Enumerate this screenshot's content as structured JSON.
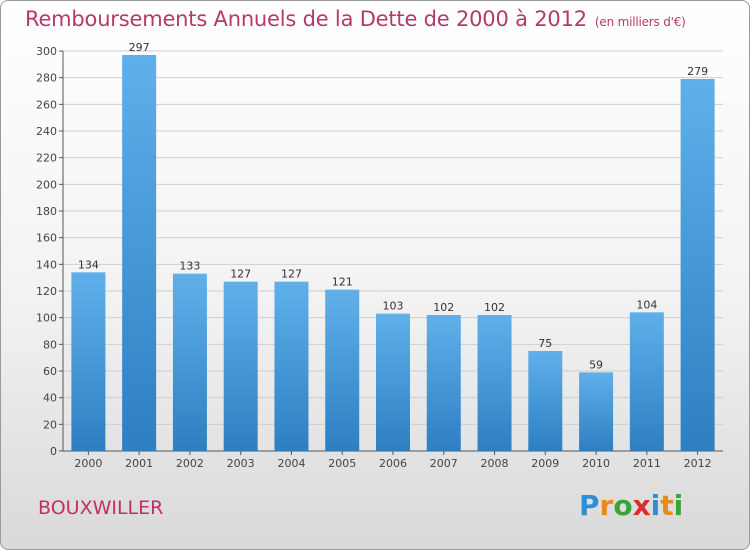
{
  "header": {
    "title": "Remboursements Annuels de la Dette de 2000 à 2012",
    "unit": "(en milliers d'€)"
  },
  "footer": {
    "commune": "BOUXWILLER",
    "logo_letters": [
      "P",
      "r",
      "o",
      "x",
      "i",
      "t",
      "i"
    ]
  },
  "colors": {
    "bar_top": "#5fb0ea",
    "bar_bottom": "#2d7fc2",
    "title": "#b53a6a",
    "grid": "#cfcfcf"
  },
  "chart_data": {
    "type": "bar",
    "title": "Remboursements Annuels de la Dette de 2000 à 2012",
    "xlabel": "",
    "ylabel": "",
    "categories": [
      "2000",
      "2001",
      "2002",
      "2003",
      "2004",
      "2005",
      "2006",
      "2007",
      "2008",
      "2009",
      "2010",
      "2011",
      "2012"
    ],
    "values": [
      134,
      297,
      133,
      127,
      127,
      121,
      103,
      102,
      102,
      75,
      59,
      104,
      279
    ],
    "ylim": [
      0,
      300
    ],
    "yticks": [
      0,
      20,
      40,
      60,
      80,
      100,
      120,
      140,
      160,
      180,
      200,
      220,
      240,
      260,
      280,
      300
    ],
    "grid": true
  }
}
